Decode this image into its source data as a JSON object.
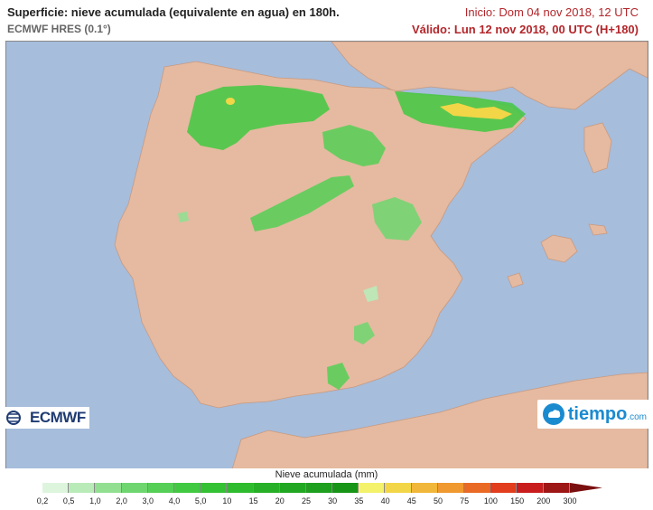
{
  "header": {
    "title": "Superficie: nieve acumulada (equivalente en agua) en 180h.",
    "model": "ECMWF HRES (0.1°)",
    "init": "Inicio: Dom 04 nov 2018, 12 UTC",
    "valid": "Válido: Lun 12 nov 2018, 00 UTC (H+180)"
  },
  "logos": {
    "ecmwf": "ECMWF",
    "tiempo": "tiempo",
    "tiempo_suffix": ".com"
  },
  "legend": {
    "title": "Nieve acumulada (mm)",
    "ticks": [
      "0,2",
      "0,5",
      "1,0",
      "2,0",
      "3,0",
      "4,0",
      "5,0",
      "10",
      "15",
      "20",
      "25",
      "30",
      "35",
      "40",
      "45",
      "50",
      "75",
      "100",
      "150",
      "200",
      "300"
    ],
    "colors": [
      "#ddf5dd",
      "#b9ebb9",
      "#92df92",
      "#6fd66f",
      "#55cf55",
      "#41c941",
      "#34c234",
      "#2ebb2e",
      "#27b027",
      "#22a722",
      "#1e9f1e",
      "#179517",
      "#f3f26a",
      "#f2d647",
      "#f1b73a",
      "#ef9930",
      "#e96a24",
      "#e23d1c",
      "#c91d1d",
      "#9e1717"
    ]
  },
  "map": {
    "sea_color": "#a6bddc",
    "land_color": "#e5baa0"
  }
}
